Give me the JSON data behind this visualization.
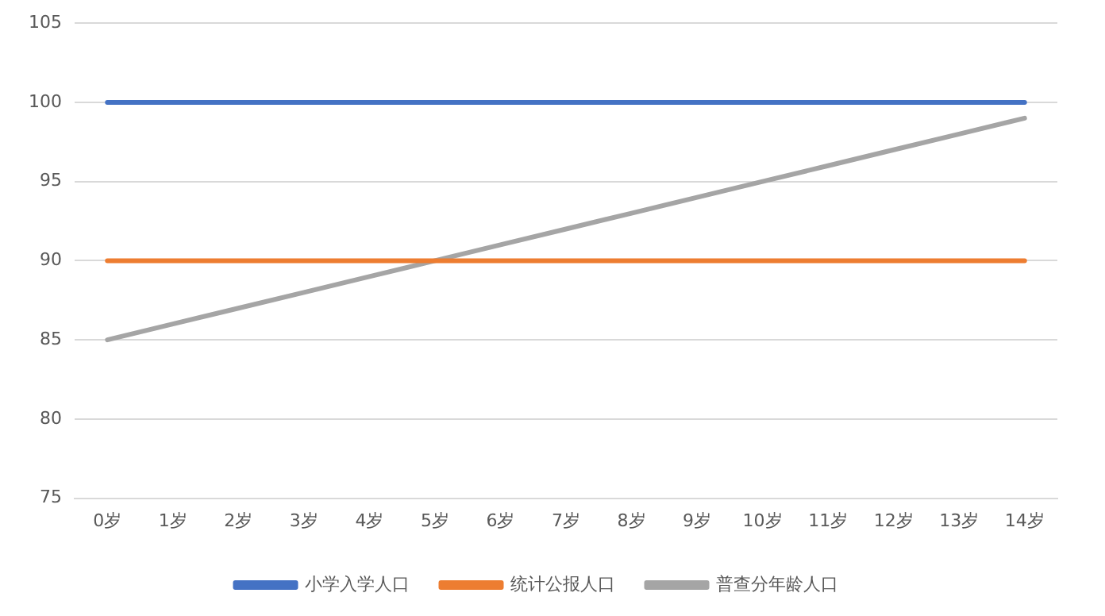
{
  "chart_data": {
    "type": "line",
    "categories": [
      "0岁",
      "1岁",
      "2岁",
      "3岁",
      "4岁",
      "5岁",
      "6岁",
      "7岁",
      "8岁",
      "9岁",
      "10岁",
      "11岁",
      "12岁",
      "13岁",
      "14岁"
    ],
    "series": [
      {
        "name": "小学入学人口",
        "color": "#4472c4",
        "values": [
          100,
          100,
          100,
          100,
          100,
          100,
          100,
          100,
          100,
          100,
          100,
          100,
          100,
          100,
          100
        ]
      },
      {
        "name": "统计公报人口",
        "color": "#ed7d31",
        "values": [
          90,
          90,
          90,
          90,
          90,
          90,
          90,
          90,
          90,
          90,
          90,
          90,
          90,
          90,
          90
        ]
      },
      {
        "name": "普查分年龄人口",
        "color": "#a5a5a5",
        "values": [
          85,
          86,
          87,
          88,
          89,
          90,
          91,
          92,
          93,
          94,
          95,
          96,
          97,
          98,
          99
        ]
      }
    ],
    "ylim": [
      75,
      105
    ],
    "yticks": [
      75,
      80,
      85,
      90,
      95,
      100,
      105
    ],
    "grid": "y",
    "legend": "bottom",
    "marker": "none",
    "line_style": "solid"
  }
}
